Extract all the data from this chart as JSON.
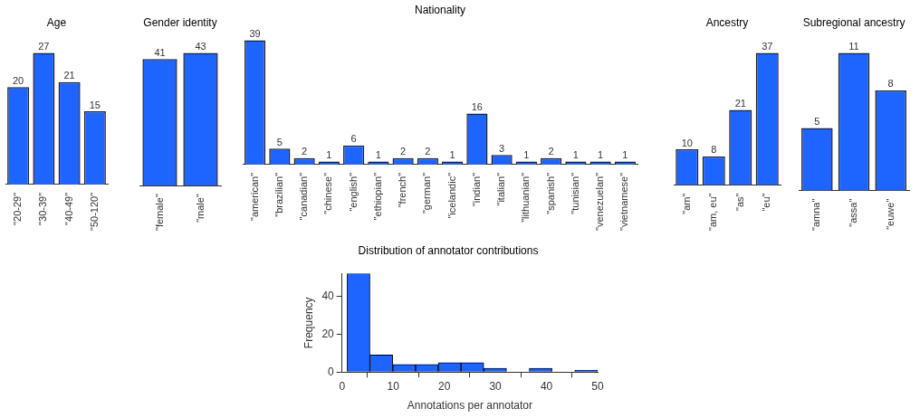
{
  "chart_data": [
    {
      "type": "bar",
      "title": "Age",
      "categories": [
        "\"20-29\"",
        "\"30-39\"",
        "\"40-49\"",
        "\"50-120\""
      ],
      "values": [
        20,
        27,
        21,
        15
      ],
      "color": "#1e64ff",
      "data_labels": true,
      "grid": false,
      "legend": false
    },
    {
      "type": "bar",
      "title": "Gender identity",
      "categories": [
        "\"female\"",
        "\"male\""
      ],
      "values": [
        41,
        43
      ],
      "color": "#1e64ff",
      "data_labels": true,
      "grid": false,
      "legend": false
    },
    {
      "type": "bar",
      "title": "Nationality",
      "categories": [
        "\"american\"",
        "\"brazilian\"",
        "\"canadian\"",
        "\"chinese\"",
        "\"english\"",
        "\"ethiopian\"",
        "\"french\"",
        "\"german\"",
        "\"icelandic\"",
        "\"indian\"",
        "\"italian\"",
        "\"lithuanian\"",
        "\"spanish\"",
        "\"tunisian\"",
        "\"venezuelan\"",
        "\"vietnamese\""
      ],
      "values": [
        39,
        5,
        2,
        1,
        6,
        1,
        2,
        2,
        1,
        16,
        3,
        1,
        2,
        1,
        1,
        1
      ],
      "color": "#1e64ff",
      "data_labels": true,
      "grid": false,
      "legend": false
    },
    {
      "type": "bar",
      "title": "Ancestry",
      "categories": [
        "\"am\"",
        "\"am, eu\"",
        "\"as\"",
        "\"eu\""
      ],
      "values": [
        10,
        8,
        21,
        37
      ],
      "color": "#1e64ff",
      "data_labels": true,
      "grid": false,
      "legend": false
    },
    {
      "type": "bar",
      "title": "Subregional ancestry",
      "categories": [
        "\"amna\"",
        "\"assa\"",
        "\"euwe\""
      ],
      "values": [
        5,
        11,
        8
      ],
      "color": "#1e64ff",
      "data_labels": true,
      "grid": false,
      "legend": false
    },
    {
      "type": "histogram",
      "title": "Distribution of annotator contributions",
      "xlabel": "Annotations per annotator",
      "ylabel": "Frequency",
      "bins": [
        1,
        5.45,
        9.9,
        14.4,
        18.8,
        23.3,
        27.7,
        32.2,
        36.6,
        41.1,
        45.5,
        50
      ],
      "values": [
        52,
        9,
        4,
        4,
        5,
        5,
        2,
        0,
        2,
        0,
        1
      ],
      "color": "#1e64ff",
      "xlim": [
        0,
        50
      ],
      "xticks": [
        0,
        10,
        20,
        30,
        40,
        50
      ],
      "ylim": [
        0,
        52
      ],
      "yticks": [
        0,
        20,
        40
      ],
      "grid": false,
      "legend": false
    }
  ]
}
